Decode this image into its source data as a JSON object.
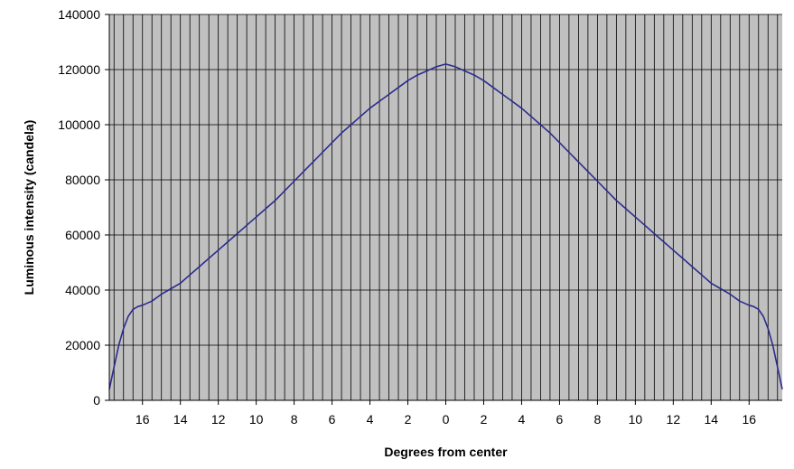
{
  "chart_data": {
    "type": "line",
    "title": "",
    "xlabel": "Degrees from center",
    "ylabel": "Luminous intensity  (candela)",
    "x_tick_labels": [
      "16",
      "14",
      "12",
      "10",
      "8",
      "6",
      "4",
      "2",
      "0",
      "2",
      "4",
      "6",
      "8",
      "10",
      "12",
      "14",
      "16"
    ],
    "x_tick_values": [
      -16,
      -14,
      -12,
      -10,
      -8,
      -6,
      -4,
      -2,
      0,
      2,
      4,
      6,
      8,
      10,
      12,
      14,
      16
    ],
    "y_tick_labels": [
      "0",
      "20000",
      "40000",
      "60000",
      "80000",
      "100000",
      "120000",
      "140000"
    ],
    "y_tick_values": [
      0,
      20000,
      40000,
      60000,
      80000,
      100000,
      120000,
      140000
    ],
    "xlim": [
      -17.75,
      17.75
    ],
    "ylim": [
      0,
      140000
    ],
    "grid": true,
    "vertical_gridline_spacing_degrees": 0.5,
    "legend": "none",
    "plot_background": "#c0c0c0",
    "gridline_color": "#000000",
    "series_color": "#2b2b8f",
    "series": [
      {
        "x": [
          -17.75,
          -17.5,
          -17.25,
          -17,
          -16.75,
          -16.5,
          -16.25,
          -16,
          -15.5,
          -15,
          -14.5,
          -14,
          -13.5,
          -13,
          -12.5,
          -12,
          -11.5,
          -11,
          -10.5,
          -10,
          -9.5,
          -9,
          -8.5,
          -8,
          -7.5,
          -7,
          -6.5,
          -6,
          -5.5,
          -5,
          -4.5,
          -4,
          -3.5,
          -3,
          -2.5,
          -2,
          -1.5,
          -1,
          -0.5,
          0,
          0.5,
          1,
          1.5,
          2,
          2.5,
          3,
          3.5,
          4,
          4.5,
          5,
          5.5,
          6,
          6.5,
          7,
          7.5,
          8,
          8.5,
          9,
          9.5,
          10,
          10.5,
          11,
          11.5,
          12,
          12.5,
          13,
          13.5,
          14,
          14.5,
          15,
          15.5,
          16,
          16.25,
          16.5,
          16.75,
          17,
          17.25,
          17.5,
          17.75
        ],
        "values": [
          4000,
          12000,
          20000,
          26000,
          30500,
          33000,
          34000,
          34500,
          36000,
          38500,
          40500,
          42500,
          45500,
          48500,
          51500,
          54500,
          57500,
          60500,
          63500,
          66500,
          69500,
          72500,
          76000,
          79500,
          83000,
          86500,
          90000,
          93500,
          97000,
          100000,
          103000,
          106000,
          108500,
          111000,
          113500,
          116000,
          118000,
          119500,
          121000,
          122000,
          121000,
          119500,
          118000,
          116000,
          113500,
          111000,
          108500,
          106000,
          103000,
          100000,
          97000,
          93500,
          90000,
          86500,
          83000,
          79500,
          76000,
          72500,
          69500,
          66500,
          63500,
          60500,
          57500,
          54500,
          51500,
          48500,
          45500,
          42500,
          40500,
          38500,
          36000,
          34500,
          34000,
          33000,
          30500,
          26000,
          20000,
          12000,
          4000
        ]
      }
    ]
  }
}
